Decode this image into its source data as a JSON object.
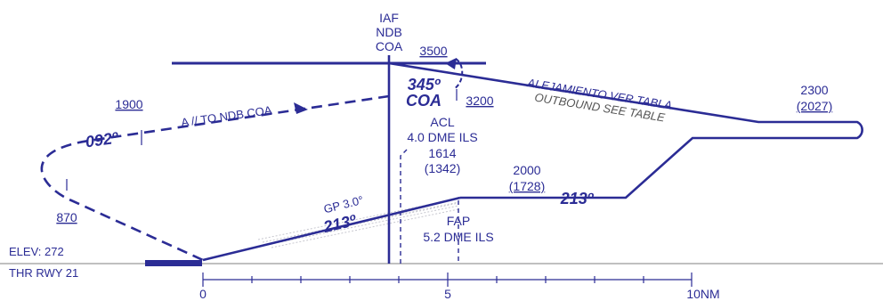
{
  "colors": {
    "route": "#2b2c95",
    "ground": "#9a9a9a",
    "gp_shade": "#9a9aa8",
    "text_gray": "#555555"
  },
  "fix": {
    "iaf": "IAF",
    "ndb": "NDB",
    "coa": "COA"
  },
  "holding": {
    "altitude": "3500",
    "inbound_course": "345º",
    "fix_label": "COA",
    "min_alt": "3200",
    "outbound_es": "ALEJAMIENTO VER TABLA",
    "outbound_en": "OUTBOUND SEE TABLE"
  },
  "procedure_turn": {
    "altitude": "1900",
    "course": "092º",
    "note": "A // TO NDB COA",
    "min_alt": "870"
  },
  "acl": {
    "label": "ACL",
    "dme": "4.0 DME ILS",
    "altitude": "1614",
    "height": "(1342)"
  },
  "final": {
    "gp": "GP 3.0°",
    "course": "213º",
    "fap_label": "FAP",
    "fap_dme": "5.2 DME ILS",
    "fap_altitude": "2000",
    "fap_height": "(1728)",
    "intermediate_course": "213º"
  },
  "outer": {
    "altitude": "2300",
    "height": "(2027)"
  },
  "aerodrome": {
    "elevation": "ELEV: 272",
    "threshold": "THR RWY 21"
  },
  "scale": {
    "zero": "0",
    "five": "5",
    "ten": "10NM"
  }
}
